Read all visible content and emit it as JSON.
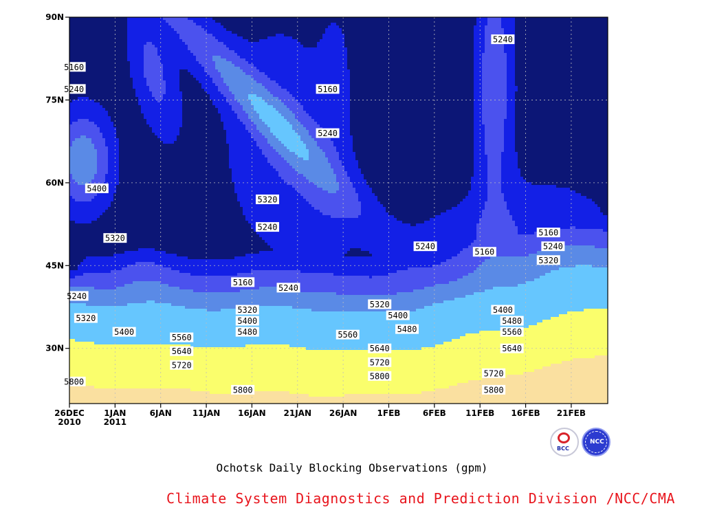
{
  "chart_data": {
    "type": "contour",
    "caption": "Ochotsk Daily Blocking Observations (gpm)",
    "x_ticks": [
      {
        "l1": "26DEC",
        "l2": "2010"
      },
      {
        "l1": "1JAN",
        "l2": "2011"
      },
      {
        "l1": "6JAN",
        "l2": ""
      },
      {
        "l1": "11JAN",
        "l2": ""
      },
      {
        "l1": "16JAN",
        "l2": ""
      },
      {
        "l1": "21JAN",
        "l2": ""
      },
      {
        "l1": "26JAN",
        "l2": ""
      },
      {
        "l1": "1FEB",
        "l2": ""
      },
      {
        "l1": "6FEB",
        "l2": ""
      },
      {
        "l1": "11FEB",
        "l2": ""
      },
      {
        "l1": "16FEB",
        "l2": ""
      },
      {
        "l1": "21FEB",
        "l2": ""
      }
    ],
    "y_ticks": [
      "30N",
      "45N",
      "60N",
      "75N",
      "90N"
    ],
    "y_tick_values": [
      30,
      45,
      60,
      75,
      90
    ],
    "ylim": [
      20,
      90
    ],
    "x_range_days": [
      0,
      59
    ],
    "levels": [
      5160,
      5240,
      5320,
      5400,
      5480,
      5560,
      5640,
      5720,
      5800
    ],
    "level_colors": [
      "#0c1676",
      "#1320e6",
      "#4b52ee",
      "#5a8ae6",
      "#66c6fe",
      "#fafe6c",
      "#fae0a0",
      "#fab07c",
      "#fa8a58",
      "#f26e78"
    ],
    "grid": true,
    "contour_labels": [
      {
        "text": "5160",
        "day": 0.5,
        "lat": 81
      },
      {
        "text": "5240",
        "day": 0.5,
        "lat": 77
      },
      {
        "text": "5400",
        "day": 3.0,
        "lat": 59
      },
      {
        "text": "5320",
        "day": 5.0,
        "lat": 50
      },
      {
        "text": "5240",
        "day": 0.8,
        "lat": 39.5
      },
      {
        "text": "5320",
        "day": 1.8,
        "lat": 35.5
      },
      {
        "text": "5400",
        "day": 6.0,
        "lat": 33
      },
      {
        "text": "5560",
        "day": 12.3,
        "lat": 32
      },
      {
        "text": "5640",
        "day": 12.3,
        "lat": 29.5
      },
      {
        "text": "5720",
        "day": 12.3,
        "lat": 27
      },
      {
        "text": "5800",
        "day": 0.5,
        "lat": 24
      },
      {
        "text": "5320",
        "day": 21.7,
        "lat": 57
      },
      {
        "text": "5240",
        "day": 21.7,
        "lat": 52
      },
      {
        "text": "5160",
        "day": 19.0,
        "lat": 42
      },
      {
        "text": "5240",
        "day": 24.0,
        "lat": 41
      },
      {
        "text": "5320",
        "day": 19.5,
        "lat": 37
      },
      {
        "text": "5400",
        "day": 19.5,
        "lat": 35
      },
      {
        "text": "5480",
        "day": 19.5,
        "lat": 33
      },
      {
        "text": "5800",
        "day": 19.0,
        "lat": 22.5
      },
      {
        "text": "5160",
        "day": 28.3,
        "lat": 77
      },
      {
        "text": "5240",
        "day": 28.3,
        "lat": 69
      },
      {
        "text": "5560",
        "day": 30.5,
        "lat": 32.5
      },
      {
        "text": "5640",
        "day": 34.0,
        "lat": 30
      },
      {
        "text": "5720",
        "day": 34.0,
        "lat": 27.5
      },
      {
        "text": "5800",
        "day": 34.0,
        "lat": 25
      },
      {
        "text": "5320",
        "day": 34.0,
        "lat": 38
      },
      {
        "text": "5400",
        "day": 36.0,
        "lat": 36
      },
      {
        "text": "5480",
        "day": 37.0,
        "lat": 33.5
      },
      {
        "text": "5240",
        "day": 39.0,
        "lat": 48.5
      },
      {
        "text": "5160",
        "day": 45.5,
        "lat": 47.5
      },
      {
        "text": "5240",
        "day": 47.5,
        "lat": 86
      },
      {
        "text": "5400",
        "day": 47.5,
        "lat": 37
      },
      {
        "text": "5480",
        "day": 48.5,
        "lat": 35
      },
      {
        "text": "5560",
        "day": 48.5,
        "lat": 33
      },
      {
        "text": "5640",
        "day": 48.5,
        "lat": 30
      },
      {
        "text": "5720",
        "day": 46.5,
        "lat": 25.5
      },
      {
        "text": "5800",
        "day": 46.5,
        "lat": 22.5
      },
      {
        "text": "5160",
        "day": 52.5,
        "lat": 51
      },
      {
        "text": "5240",
        "day": 53.0,
        "lat": 48.5
      },
      {
        "text": "5320",
        "day": 52.5,
        "lat": 46
      }
    ]
  },
  "footer": {
    "caption": "Ochotsk Daily Blocking Observations (gpm)",
    "credit": "Climate System Diagnostics and Prediction Division /NCC/CMA",
    "logo_left_text": "BCC",
    "logo_right_text": "NCC"
  }
}
